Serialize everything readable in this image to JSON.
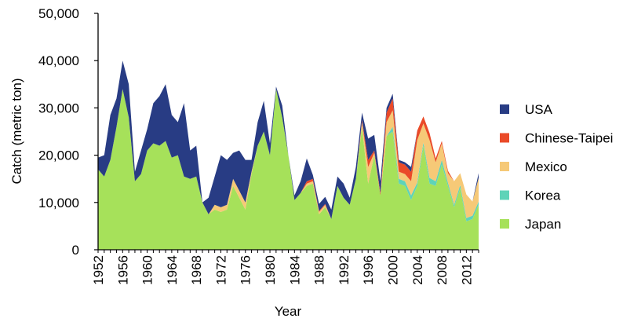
{
  "chart_data": {
    "type": "area",
    "stacked": true,
    "xlabel": "Year",
    "ylabel": "Catch (metric ton)",
    "ylim": [
      0,
      50000
    ],
    "xlim": [
      1952,
      2014
    ],
    "y_ticks": [
      "0",
      "10,000",
      "20,000",
      "30,000",
      "40,000",
      "50,000"
    ],
    "x_ticks": [
      "1952",
      "1956",
      "1960",
      "1964",
      "1968",
      "1972",
      "1976",
      "1980",
      "1984",
      "1988",
      "1992",
      "1996",
      "2000",
      "2004",
      "2008",
      "2012"
    ],
    "x_tick_values": [
      1952,
      1956,
      1960,
      1964,
      1968,
      1972,
      1976,
      1980,
      1984,
      1988,
      1992,
      1996,
      2000,
      2004,
      2008,
      2012
    ],
    "legend_position": "right",
    "years": [
      1952,
      1953,
      1954,
      1955,
      1956,
      1957,
      1958,
      1959,
      1960,
      1961,
      1962,
      1963,
      1964,
      1965,
      1966,
      1967,
      1968,
      1969,
      1970,
      1971,
      1972,
      1973,
      1974,
      1975,
      1976,
      1977,
      1978,
      1979,
      1980,
      1981,
      1982,
      1983,
      1984,
      1985,
      1986,
      1987,
      1988,
      1989,
      1990,
      1991,
      1992,
      1993,
      1994,
      1995,
      1996,
      1997,
      1998,
      1999,
      2000,
      2001,
      2002,
      2003,
      2004,
      2005,
      2006,
      2007,
      2008,
      2009,
      2010,
      2011,
      2012,
      2013,
      2014
    ],
    "series": [
      {
        "name": "Japan",
        "color": "#a6e15a",
        "values": [
          17000,
          15500,
          19000,
          26000,
          34000,
          28000,
          14500,
          16000,
          21000,
          22500,
          22000,
          23000,
          19500,
          20000,
          15500,
          15000,
          15500,
          10000,
          7500,
          8500,
          8000,
          8500,
          13500,
          11000,
          8500,
          16000,
          22000,
          25000,
          20000,
          34000,
          28000,
          20000,
          10500,
          12000,
          13500,
          14000,
          7500,
          9000,
          6500,
          13500,
          11000,
          9500,
          15000,
          26000,
          14000,
          20000,
          11500,
          24000,
          25000,
          14000,
          13500,
          10500,
          13500,
          22000,
          14000,
          13500,
          18000,
          13500,
          9000,
          13000,
          6000,
          6500,
          9500
        ]
      },
      {
        "name": "Korea",
        "color": "#5fd3b8",
        "values": [
          0,
          0,
          0,
          0,
          0,
          0,
          0,
          0,
          0,
          0,
          0,
          0,
          0,
          0,
          0,
          0,
          0,
          0,
          0,
          0,
          0,
          0,
          0,
          0,
          0,
          0,
          0,
          0,
          0,
          0,
          0,
          0,
          0,
          0,
          0,
          0,
          0,
          0,
          0,
          0,
          0,
          0,
          0,
          0,
          0,
          0,
          0,
          0,
          1000,
          1000,
          1000,
          1000,
          700,
          700,
          1200,
          1000,
          1000,
          700,
          500,
          700,
          700,
          700,
          700
        ]
      },
      {
        "name": "Mexico",
        "color": "#f6c977",
        "values": [
          0,
          0,
          0,
          0,
          0,
          0,
          0,
          0,
          0,
          0,
          0,
          0,
          0,
          0,
          0,
          0,
          0,
          0,
          0,
          1000,
          1000,
          1000,
          1500,
          1500,
          1500,
          500,
          0,
          0,
          0,
          0,
          0,
          0,
          0,
          0,
          500,
          500,
          500,
          500,
          0,
          0,
          0,
          0,
          0,
          1000,
          3500,
          500,
          0,
          3000,
          3500,
          1500,
          1500,
          3000,
          9000,
          4000,
          8000,
          4000,
          3500,
          2000,
          5000,
          2500,
          5000,
          3000,
          5000
        ]
      },
      {
        "name": "Chinese-Taipei",
        "color": "#ea4a28",
        "values": [
          0,
          0,
          0,
          0,
          0,
          0,
          0,
          0,
          0,
          0,
          0,
          0,
          0,
          0,
          0,
          0,
          0,
          0,
          0,
          0,
          0,
          0,
          0,
          0,
          0,
          0,
          0,
          0,
          0,
          0,
          0,
          0,
          0,
          0,
          500,
          500,
          200,
          200,
          0,
          0,
          0,
          0,
          0,
          500,
          1500,
          500,
          500,
          2000,
          2500,
          2000,
          2000,
          2000,
          2000,
          1500,
          1500,
          800,
          500,
          500,
          0,
          0,
          0,
          0,
          0
        ]
      },
      {
        "name": "USA",
        "color": "#283c84",
        "values": [
          2500,
          4500,
          9500,
          6000,
          6000,
          7000,
          2000,
          5000,
          4500,
          8500,
          10500,
          12000,
          9000,
          7000,
          15500,
          6000,
          6500,
          0,
          3500,
          6000,
          11000,
          9500,
          5500,
          8500,
          9000,
          2500,
          5000,
          6500,
          2500,
          500,
          2500,
          0,
          1000,
          2500,
          4800,
          800,
          1500,
          1500,
          2000,
          2000,
          3000,
          1500,
          2500,
          1500,
          4500,
          3300,
          2500,
          1000,
          1000,
          500,
          500,
          1000,
          0,
          0,
          0,
          0,
          0,
          0,
          0,
          0,
          0,
          0,
          1000
        ]
      }
    ]
  }
}
